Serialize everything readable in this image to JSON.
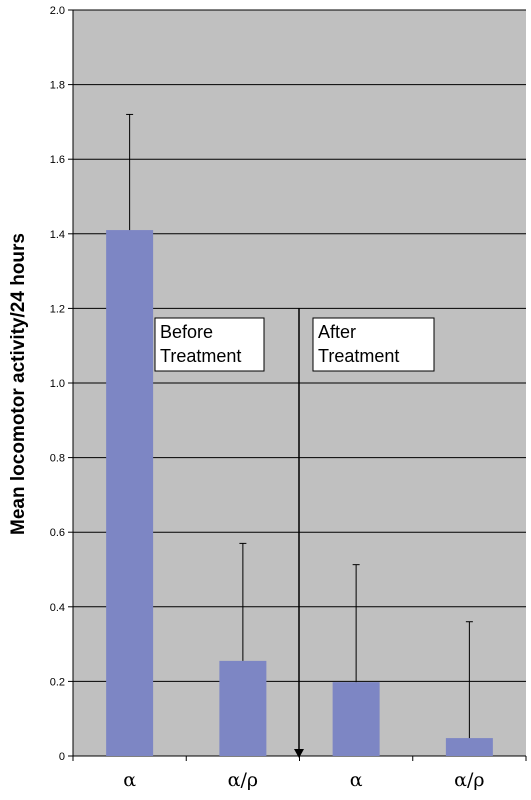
{
  "chart_data": {
    "type": "bar",
    "title": "",
    "xlabel": "",
    "ylabel": "Mean locomotor activity/24 hours",
    "ylim": [
      0,
      2.0
    ],
    "yticks": [
      "0",
      "0.2",
      "0.4",
      "0.6",
      "0.8",
      "1.0",
      "1.2",
      "1.4",
      "1.6",
      "1.8",
      "2.0"
    ],
    "categories": [
      "α",
      "α/ρ",
      "α",
      "α/ρ"
    ],
    "values": [
      1.41,
      0.255,
      0.198,
      0.048
    ],
    "error_upper": [
      1.72,
      0.57,
      0.513,
      0.36
    ],
    "grid": true,
    "bar_color": "#7d86c4",
    "plot_background": "#c0c0c0",
    "annotations": [
      {
        "id": "before",
        "lines": [
          "Before",
          "Treatment"
        ]
      },
      {
        "id": "after",
        "lines": [
          "After",
          "Treatment"
        ]
      }
    ]
  }
}
